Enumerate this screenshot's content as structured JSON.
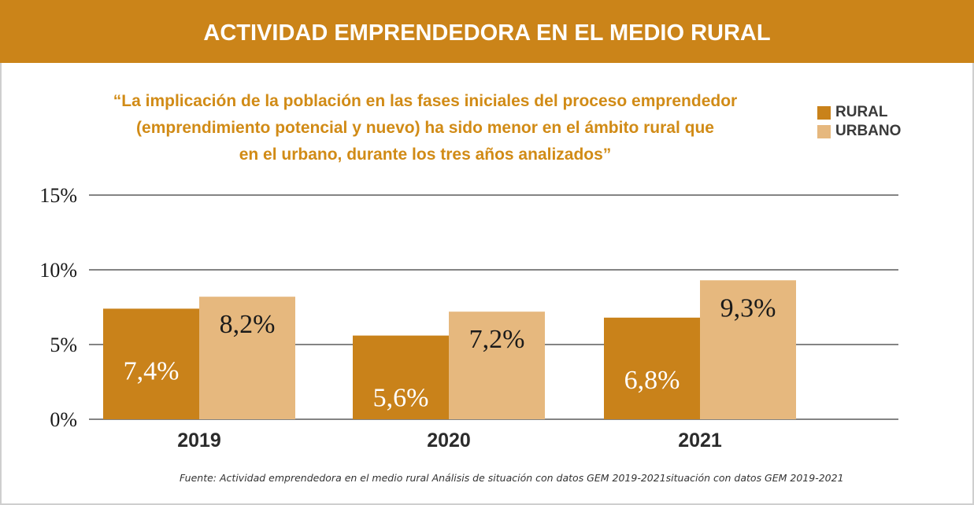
{
  "header": {
    "title": "ACTIVIDAD EMPRENDEDORA EN EL MEDIO RURAL"
  },
  "quote": {
    "lines": [
      "“La implicación de la población en las fases iniciales del proceso emprendedor",
      "(emprendimiento potencial y nuevo) ha sido menor en el ámbito rural que",
      "en el urbano, durante los tres años analizados”"
    ]
  },
  "source": "Fuente:  Actividad emprendedora en el medio rural Análisis de situación con datos GEM 2019-2021situación con datos GEM 2019-2021",
  "colors": {
    "banner": "#cb8419",
    "quote_text": "#d18b16",
    "rural": "#c9821a",
    "urbano": "#e6b87e",
    "rural_label": "#ffffff",
    "urbano_label": "#1a1a1a"
  },
  "chart_data": {
    "type": "bar",
    "categories": [
      "2019",
      "2020",
      "2021"
    ],
    "series": [
      {
        "name": "RURAL",
        "values": [
          7.4,
          5.6,
          6.8
        ],
        "labels": [
          "7,4%",
          "5,6%",
          "6,8%"
        ]
      },
      {
        "name": "URBANO",
        "values": [
          8.2,
          7.2,
          9.3
        ],
        "labels": [
          "8,2%",
          "7,2%",
          "9,3%"
        ]
      }
    ],
    "yticks": [
      0,
      5,
      10,
      15
    ],
    "ytick_labels": [
      "0%",
      "5%",
      "10%",
      "15%"
    ],
    "ylim": [
      0,
      15
    ],
    "grid": true,
    "legend_position": "top-right",
    "title": "",
    "xlabel": "",
    "ylabel": ""
  }
}
